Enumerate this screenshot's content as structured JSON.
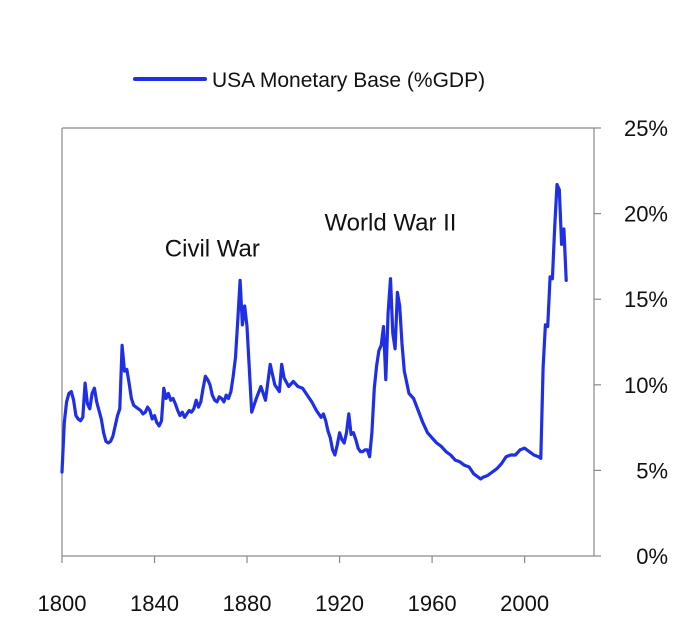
{
  "chart_data": {
    "type": "line",
    "title": "",
    "xlabel": "",
    "ylabel": "",
    "xlim": [
      1800,
      2030
    ],
    "ylim": [
      0,
      25
    ],
    "y_axis_side": "right",
    "grid": false,
    "legend_position": "top-center",
    "x_ticks": [
      1800,
      1840,
      1880,
      1920,
      1960,
      2000
    ],
    "x_tick_labels": [
      "1800",
      "1840",
      "1880",
      "1920",
      "1960",
      "2000"
    ],
    "y_ticks": [
      0,
      5,
      10,
      15,
      20,
      25
    ],
    "y_tick_labels": [
      "0%",
      "5%",
      "10%",
      "15%",
      "20%",
      "25%"
    ],
    "colors": {
      "series": "#1f2fe6",
      "axis": "#8a8a8a"
    },
    "annotations": [
      {
        "text": "Civil War",
        "x": 1865,
        "y": 17.5
      },
      {
        "text": "World War II",
        "x": 1942,
        "y": 19.0
      }
    ],
    "series": [
      {
        "name": "USA Monetary Base (%GDP)",
        "x": [
          1800,
          1801,
          1802,
          1803,
          1804,
          1805,
          1806,
          1807,
          1808,
          1809,
          1810,
          1811,
          1812,
          1813,
          1814,
          1815,
          1816,
          1817,
          1818,
          1819,
          1820,
          1821,
          1822,
          1823,
          1824,
          1825,
          1826,
          1827,
          1828,
          1829,
          1830,
          1831,
          1832,
          1833,
          1834,
          1835,
          1836,
          1837,
          1838,
          1839,
          1840,
          1841,
          1842,
          1843,
          1844,
          1845,
          1846,
          1847,
          1848,
          1849,
          1850,
          1851,
          1852,
          1853,
          1854,
          1855,
          1856,
          1857,
          1858,
          1859,
          1860,
          1861,
          1862,
          1863,
          1864,
          1865,
          1866,
          1867,
          1868,
          1869,
          1870,
          1871,
          1872,
          1873,
          1874,
          1875,
          1876,
          1877,
          1878,
          1879,
          1880,
          1882,
          1884,
          1886,
          1888,
          1890,
          1892,
          1894,
          1895,
          1896,
          1898,
          1900,
          1902,
          1904,
          1906,
          1908,
          1910,
          1912,
          1913,
          1914,
          1915,
          1916,
          1917,
          1918,
          1919,
          1920,
          1921,
          1922,
          1923,
          1924,
          1925,
          1926,
          1927,
          1928,
          1929,
          1930,
          1931,
          1932,
          1933,
          1934,
          1935,
          1936,
          1937,
          1938,
          1939,
          1940,
          1941,
          1942,
          1943,
          1944,
          1945,
          1946,
          1947,
          1948,
          1950,
          1952,
          1954,
          1956,
          1958,
          1960,
          1962,
          1964,
          1966,
          1968,
          1970,
          1972,
          1974,
          1976,
          1978,
          1980,
          1981,
          1982,
          1984,
          1986,
          1988,
          1990,
          1992,
          1994,
          1996,
          1998,
          2000,
          2002,
          2004,
          2006,
          2007,
          2008,
          2009,
          2010,
          2011,
          2012,
          2013,
          2014,
          2015,
          2016,
          2017,
          2018
        ],
        "y": [
          4.9,
          7.8,
          9.0,
          9.5,
          9.6,
          9.1,
          8.2,
          8.0,
          7.9,
          8.1,
          10.1,
          8.9,
          8.6,
          9.5,
          9.8,
          9.0,
          8.5,
          8.0,
          7.2,
          6.7,
          6.6,
          6.7,
          7.0,
          7.6,
          8.2,
          8.6,
          12.3,
          10.8,
          10.9,
          10.1,
          9.2,
          8.8,
          8.7,
          8.6,
          8.5,
          8.3,
          8.4,
          8.7,
          8.5,
          8.0,
          8.2,
          7.8,
          7.6,
          7.9,
          9.8,
          9.2,
          9.5,
          9.1,
          9.2,
          8.9,
          8.5,
          8.2,
          8.4,
          8.1,
          8.3,
          8.5,
          8.4,
          8.6,
          9.1,
          8.7,
          9.0,
          9.8,
          10.5,
          10.3,
          10.0,
          9.4,
          9.1,
          9.0,
          9.3,
          9.2,
          9.0,
          9.4,
          9.2,
          9.6,
          10.5,
          11.6,
          13.8,
          16.1,
          13.5,
          14.6,
          13.4,
          8.4,
          9.2,
          9.9,
          9.1,
          11.2,
          10.0,
          9.6,
          11.2,
          10.4,
          9.9,
          10.2,
          9.9,
          9.8,
          9.4,
          9.0,
          8.5,
          8.1,
          8.3,
          7.9,
          7.3,
          6.9,
          6.2,
          5.9,
          6.5,
          7.2,
          6.8,
          6.6,
          7.2,
          8.3,
          7.1,
          7.2,
          6.8,
          6.3,
          6.1,
          6.1,
          6.2,
          6.2,
          5.8,
          7.2,
          9.8,
          11.1,
          12.0,
          12.3,
          13.4,
          10.3,
          14.2,
          16.2,
          13.0,
          12.1,
          15.4,
          14.6,
          12.4,
          10.8,
          9.5,
          9.2,
          8.5,
          7.8,
          7.2,
          6.9,
          6.6,
          6.4,
          6.1,
          5.9,
          5.6,
          5.5,
          5.3,
          5.2,
          4.8,
          4.6,
          4.5,
          4.6,
          4.7,
          4.9,
          5.1,
          5.4,
          5.8,
          5.9,
          5.9,
          6.2,
          6.3,
          6.1,
          5.9,
          5.8,
          5.7,
          11.0,
          13.5,
          13.4,
          16.3,
          16.2,
          19.2,
          21.7,
          21.4,
          18.2,
          19.1,
          16.1
        ]
      }
    ]
  }
}
